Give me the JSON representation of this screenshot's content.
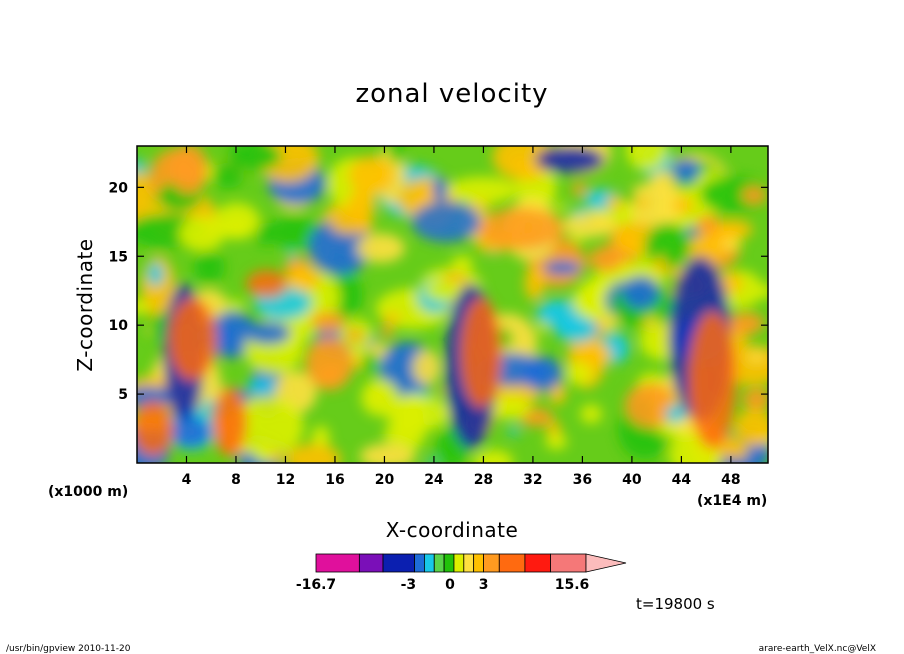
{
  "chart_data": {
    "type": "heatmap",
    "title": "zonal velocity",
    "xlabel": "X-coordinate",
    "ylabel": "Z-coordinate",
    "x_unit": "(x1E4 m)",
    "y_unit": "(x1000 m)",
    "x_ticks": [
      "4",
      "8",
      "12",
      "16",
      "20",
      "24",
      "28",
      "32",
      "36",
      "40",
      "44",
      "48"
    ],
    "y_ticks": [
      "5",
      "10",
      "15",
      "20"
    ],
    "xlim": [
      0,
      51
    ],
    "ylim": [
      0,
      23
    ],
    "colorbar": {
      "labels": [
        "-16.7",
        "-3",
        "0",
        "3",
        "15.6"
      ],
      "colors": [
        "#e0109c",
        "#7a0fb8",
        "#0b1fb0",
        "#1e6cd8",
        "#18c8e8",
        "#5ad44a",
        "#22c20a",
        "#dcf000",
        "#ffe040",
        "#ffc000",
        "#ff9a20",
        "#ff6a10",
        "#ff1a10",
        "#f57878",
        "#fcbcbc"
      ]
    },
    "time_label": "t=19800 s"
  },
  "footer": {
    "left": "/usr/bin/gpview   2010-11-20",
    "right": "arare-earth_VelX.nc@VelX"
  }
}
